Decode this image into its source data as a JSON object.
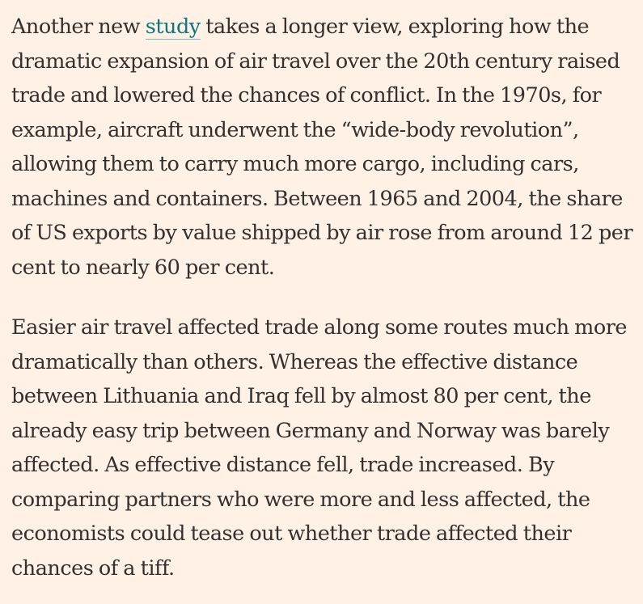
{
  "article": {
    "paragraphs": [
      {
        "before_link": "Another new ",
        "link_text": "study",
        "after_link": " takes a longer view, exploring how the dramatic expansion of air travel over the 20th century raised trade and lowered the chances of conflict. In the 1970s, for example, aircraft underwent the “wide-body revolution”, allowing them to carry much more cargo, including cars, machines and containers. Between 1965 and 2004, the share of US exports by value shipped by air rose from around 12 per cent to nearly 60 per cent."
      },
      {
        "text": "Easier air travel affected trade along some routes much more dramatically than others. Whereas the effective distance between Lithuania and Iraq fell by almost 80 per cent, the already easy trip between Germany and Norway was barely affected. As effective distance fell, trade increased. By comparing partners who were more and less affected, the economists could tease out whether trade affected their chances of a tiff."
      }
    ]
  },
  "colors": {
    "background": "#fff1e5",
    "text": "#33302e",
    "link": "#0d7680"
  }
}
